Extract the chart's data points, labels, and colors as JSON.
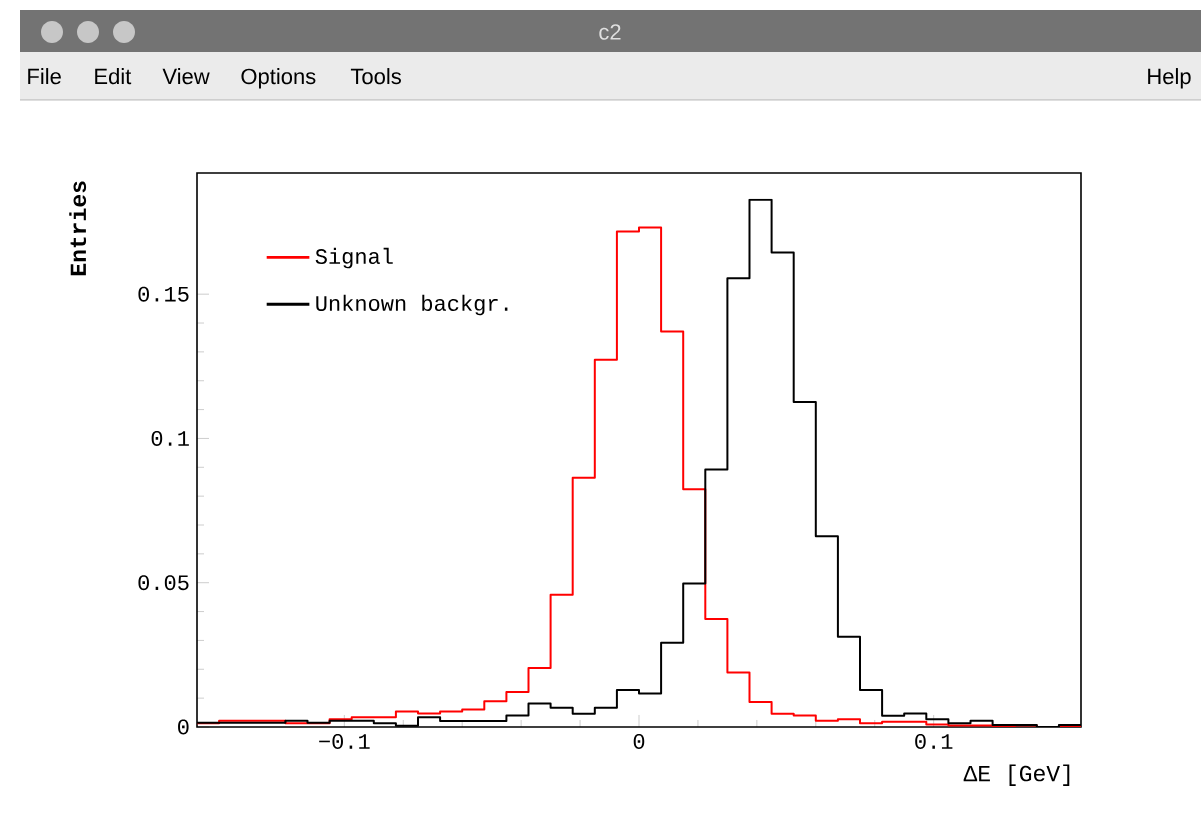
{
  "chart_data": {
    "type": "histogram",
    "xlabel": "ΔE [GeV]",
    "ylabel": "Entries",
    "annotations": [
      "c2",
      "File",
      "Edit",
      "View",
      "Options",
      "Tools",
      "Help"
    ],
    "bins": [
      -0.15,
      -0.1425,
      -0.135,
      -0.1275,
      -0.12,
      -0.1125,
      -0.105,
      -0.0975,
      -0.09,
      -0.0825,
      -0.075,
      -0.0675,
      -0.06,
      -0.0525,
      -0.045,
      -0.0375,
      -0.03,
      -0.0225,
      -0.015,
      -0.0075,
      0,
      0.0075,
      0.015,
      0.0225,
      0.03,
      0.0375,
      0.045,
      0.0525,
      0.06,
      0.0675,
      0.075,
      0.0825,
      0.09,
      0.0975,
      0.105,
      0.1125,
      0.12,
      0.1275,
      0.135,
      0.1425,
      0.15
    ],
    "series": [
      {
        "name": "Signal",
        "color": "#ff0000",
        "values": [
          0.0013,
          0.0022,
          0.0022,
          0.0022,
          0.0013,
          0.0013,
          0.0027,
          0.0034,
          0.0034,
          0.0054,
          0.0047,
          0.0054,
          0.0061,
          0.0089,
          0.0121,
          0.0204,
          0.0458,
          0.0864,
          0.1273,
          0.1717,
          0.1731,
          0.1371,
          0.0824,
          0.0374,
          0.0189,
          0.0087,
          0.0046,
          0.004,
          0.0022,
          0.0027,
          0.0013,
          0.0018,
          0.0018,
          0.0009,
          0.0005,
          0.0005,
          0,
          0.0005,
          0,
          0
        ]
      },
      {
        "name": "Unknown backgr.",
        "color": "#000000",
        "values": [
          0.0015,
          0.0015,
          0.0015,
          0.0015,
          0.0022,
          0.0015,
          0.0022,
          0.0022,
          0.0013,
          0.0004,
          0.0034,
          0.0021,
          0.0021,
          0.0021,
          0.004,
          0.0081,
          0.0067,
          0.0046,
          0.0067,
          0.0128,
          0.0116,
          0.0292,
          0.0497,
          0.0892,
          0.1555,
          0.1827,
          0.1644,
          0.1126,
          0.0661,
          0.0313,
          0.0128,
          0.0039,
          0.0047,
          0.0027,
          0.0013,
          0.0022,
          0.0007,
          0.0007,
          0,
          0.0007
        ]
      }
    ],
    "xlim": [
      -0.15,
      0.15
    ],
    "ylim": [
      0,
      0.192
    ],
    "xticks": [
      {
        "value": -0.1,
        "label": "−0.1"
      },
      {
        "value": 0,
        "label": "0"
      },
      {
        "value": 0.1,
        "label": "0.1"
      }
    ],
    "yticks": [
      {
        "value": 0,
        "label": "0"
      },
      {
        "value": 0.05,
        "label": "0.05"
      },
      {
        "value": 0.1,
        "label": "0.1"
      },
      {
        "value": 0.15,
        "label": "0.15"
      }
    ],
    "legend": "top left",
    "grid": false
  }
}
